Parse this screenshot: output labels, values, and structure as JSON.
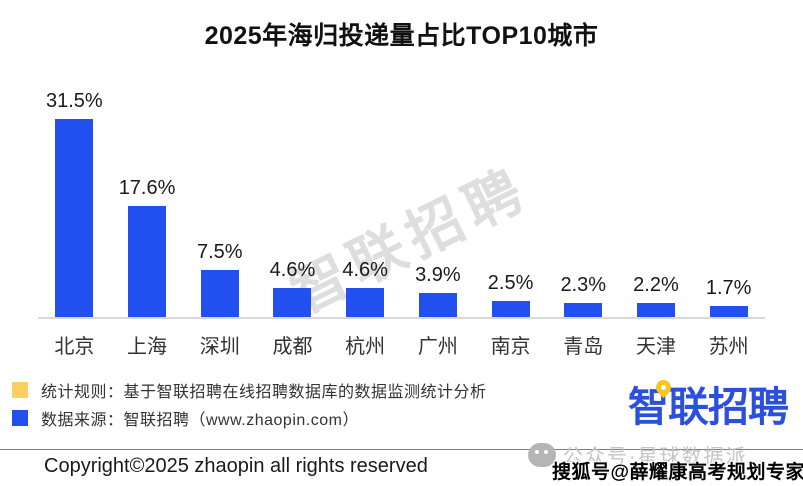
{
  "title": "2025年海归投递量占比TOP10城市",
  "chart_data": {
    "type": "bar",
    "title": "2025年海归投递量占比TOP10城市",
    "categories": [
      "北京",
      "上海",
      "深圳",
      "成都",
      "杭州",
      "广州",
      "南京",
      "青岛",
      "天津",
      "苏州"
    ],
    "values": [
      31.5,
      17.6,
      7.5,
      4.6,
      4.6,
      3.9,
      2.5,
      2.3,
      2.2,
      1.7
    ],
    "value_labels": [
      "31.5%",
      "17.6%",
      "7.5%",
      "4.6%",
      "4.6%",
      "3.9%",
      "2.5%",
      "2.3%",
      "2.2%",
      "1.7%"
    ],
    "xlabel": "",
    "ylabel": "",
    "ylim": [
      0,
      31.5
    ],
    "grid": false,
    "legend_position": "none",
    "bar_color": "#2250f0"
  },
  "legend": {
    "items": [
      {
        "color": "#f9d061",
        "label": "统计规则：基于智联招聘在线招聘数据库的数据监测统计分析"
      },
      {
        "color": "#2250f0",
        "label": "数据来源：智联招聘（www.zhaopin.com）"
      }
    ]
  },
  "logo": {
    "text": "智联招聘",
    "brand_color": "#2b50de",
    "pin_color": "#f6c51e"
  },
  "footer": {
    "copyright": "Copyright©2025 zhaopin all rights reserved"
  },
  "watermarks": {
    "center": "智联招聘",
    "wechat": "公众号·星球数据派",
    "sohu": "搜狐号@薛耀康高考规划专家"
  }
}
